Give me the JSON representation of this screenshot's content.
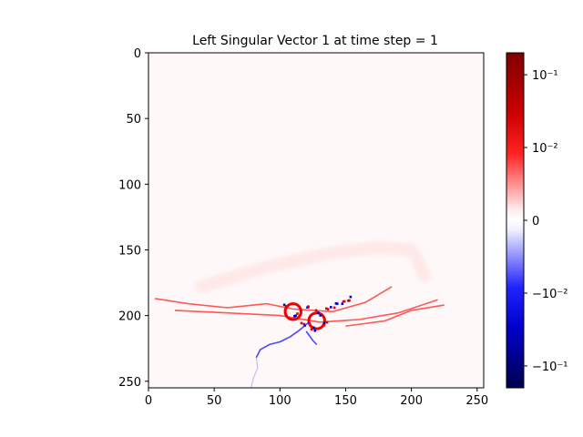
{
  "chart_data": {
    "type": "heatmap",
    "title": "Left Singular Vector 1 at time step = 1",
    "xlabel": "",
    "ylabel": "",
    "x_ticks": [
      0,
      50,
      100,
      150,
      200,
      250
    ],
    "y_ticks": [
      0,
      50,
      100,
      150,
      200,
      250
    ],
    "xlim": [
      0,
      255
    ],
    "ylim": [
      255,
      0
    ],
    "colormap": "seismic",
    "color_scale": "symlog",
    "colorbar": {
      "ticks": [
        {
          "value": 0.1,
          "label": "10⁻¹"
        },
        {
          "value": 0.01,
          "label": "10⁻²"
        },
        {
          "value": 0,
          "label": "0"
        },
        {
          "value": -0.01,
          "label": "−10⁻²"
        },
        {
          "value": -0.1,
          "label": "−10⁻¹"
        }
      ],
      "range": [
        -0.2,
        0.2
      ]
    },
    "background_color": "#fff8f8",
    "features": [
      {
        "kind": "faint-arc",
        "sign": "positive",
        "points": [
          [
            40,
            178
          ],
          [
            90,
            163
          ],
          [
            140,
            152
          ],
          [
            175,
            148
          ],
          [
            200,
            150
          ],
          [
            205,
            158
          ],
          [
            210,
            170
          ]
        ]
      },
      {
        "kind": "filament",
        "sign": "positive",
        "points": [
          [
            5,
            187
          ],
          [
            30,
            191
          ],
          [
            60,
            194
          ],
          [
            90,
            191
          ],
          [
            110,
            195
          ],
          [
            140,
            197
          ],
          [
            165,
            190
          ],
          [
            185,
            178
          ]
        ]
      },
      {
        "kind": "filament",
        "sign": "positive",
        "points": [
          [
            20,
            196
          ],
          [
            60,
            198
          ],
          [
            100,
            200
          ],
          [
            130,
            205
          ],
          [
            160,
            203
          ],
          [
            190,
            198
          ],
          [
            220,
            188
          ]
        ]
      },
      {
        "kind": "filament",
        "sign": "positive",
        "points": [
          [
            150,
            208
          ],
          [
            180,
            204
          ],
          [
            200,
            196
          ],
          [
            225,
            192
          ]
        ]
      },
      {
        "kind": "ring",
        "sign": "positive",
        "cx": 110,
        "cy": 197,
        "r": 6
      },
      {
        "kind": "ring",
        "sign": "positive",
        "cx": 128,
        "cy": 204,
        "r": 6
      },
      {
        "kind": "cluster",
        "sign": "mixed",
        "points": [
          [
            104,
            192
          ],
          [
            112,
            198
          ],
          [
            120,
            194
          ],
          [
            128,
            197
          ],
          [
            136,
            194
          ],
          [
            142,
            191
          ],
          [
            148,
            189
          ],
          [
            153,
            186
          ],
          [
            117,
            206
          ],
          [
            125,
            210
          ],
          [
            133,
            205
          ]
        ]
      },
      {
        "kind": "filament",
        "sign": "negative",
        "points": [
          [
            122,
            205
          ],
          [
            115,
            211
          ],
          [
            108,
            216
          ],
          [
            100,
            220
          ],
          [
            92,
            222
          ],
          [
            85,
            226
          ],
          [
            82,
            232
          ]
        ]
      },
      {
        "kind": "filament",
        "sign": "negative",
        "points": [
          [
            120,
            212
          ],
          [
            125,
            219
          ],
          [
            128,
            222
          ]
        ]
      },
      {
        "kind": "faint-trail",
        "sign": "negative",
        "points": [
          [
            82,
            232
          ],
          [
            83,
            240
          ],
          [
            80,
            247
          ],
          [
            78,
            255
          ]
        ]
      }
    ]
  }
}
